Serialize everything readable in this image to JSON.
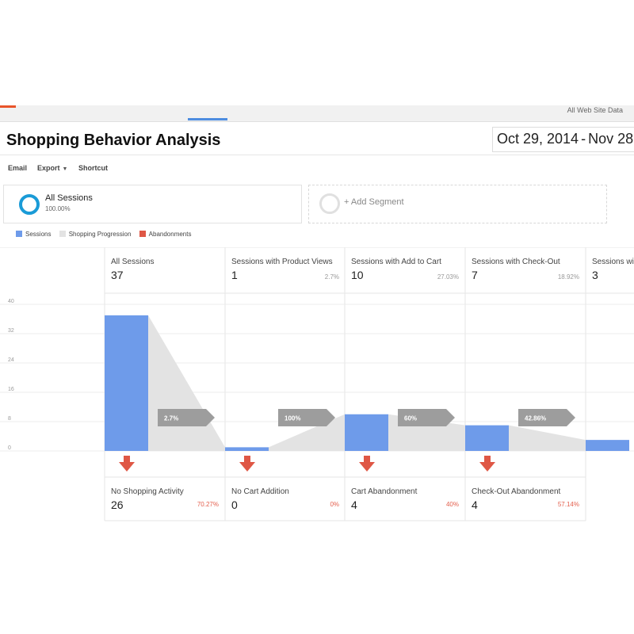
{
  "header": {
    "account": "All Web Site Data"
  },
  "report": {
    "title": "Shopping Behavior Analysis",
    "date_start": "Oct 29, 2014",
    "date_sep": "-",
    "date_end": "Nov 28"
  },
  "toolbar": {
    "email": "Email",
    "export": "Export",
    "shortcut": "Shortcut"
  },
  "segments": {
    "active_name": "All Sessions",
    "active_pct": "100.00%",
    "add_label": "+ Add Segment"
  },
  "legend": {
    "sessions": "Sessions",
    "progression": "Shopping Progression",
    "abandonments": "Abandonments"
  },
  "colors": {
    "sessions": "#6e9bea",
    "progression": "#e3e3e3",
    "abandonments": "#df5745",
    "arrow": "#9d9d9d"
  },
  "stages": [
    {
      "name": "All Sessions",
      "value": "37",
      "pct": ""
    },
    {
      "name": "Sessions with Product Views",
      "value": "1",
      "pct": "2.7%"
    },
    {
      "name": "Sessions with Add to Cart",
      "value": "10",
      "pct": "27.03%"
    },
    {
      "name": "Sessions with Check-Out",
      "value": "7",
      "pct": "18.92%"
    },
    {
      "name": "Sessions wi",
      "value": "3",
      "pct": ""
    }
  ],
  "abandonments": [
    {
      "name": "No Shopping Activity",
      "value": "26",
      "pct": "70.27%"
    },
    {
      "name": "No Cart Addition",
      "value": "0",
      "pct": "0%"
    },
    {
      "name": "Cart Abandonment",
      "value": "4",
      "pct": "40%"
    },
    {
      "name": "Check-Out Abandonment",
      "value": "4",
      "pct": "57.14%"
    }
  ],
  "chart_data": {
    "type": "bar",
    "categories": [
      "All Sessions",
      "Sessions with Product Views",
      "Sessions with Add to Cart",
      "Sessions with Check-Out",
      "Sessions wi"
    ],
    "values": [
      37,
      1,
      10,
      7,
      3
    ],
    "progression_labels": [
      "2.7%",
      "100%",
      "60%",
      "42.86%"
    ],
    "y_ticks": [
      "0",
      "8",
      "16",
      "24",
      "32",
      "40"
    ],
    "ylim": [
      0,
      40
    ]
  }
}
